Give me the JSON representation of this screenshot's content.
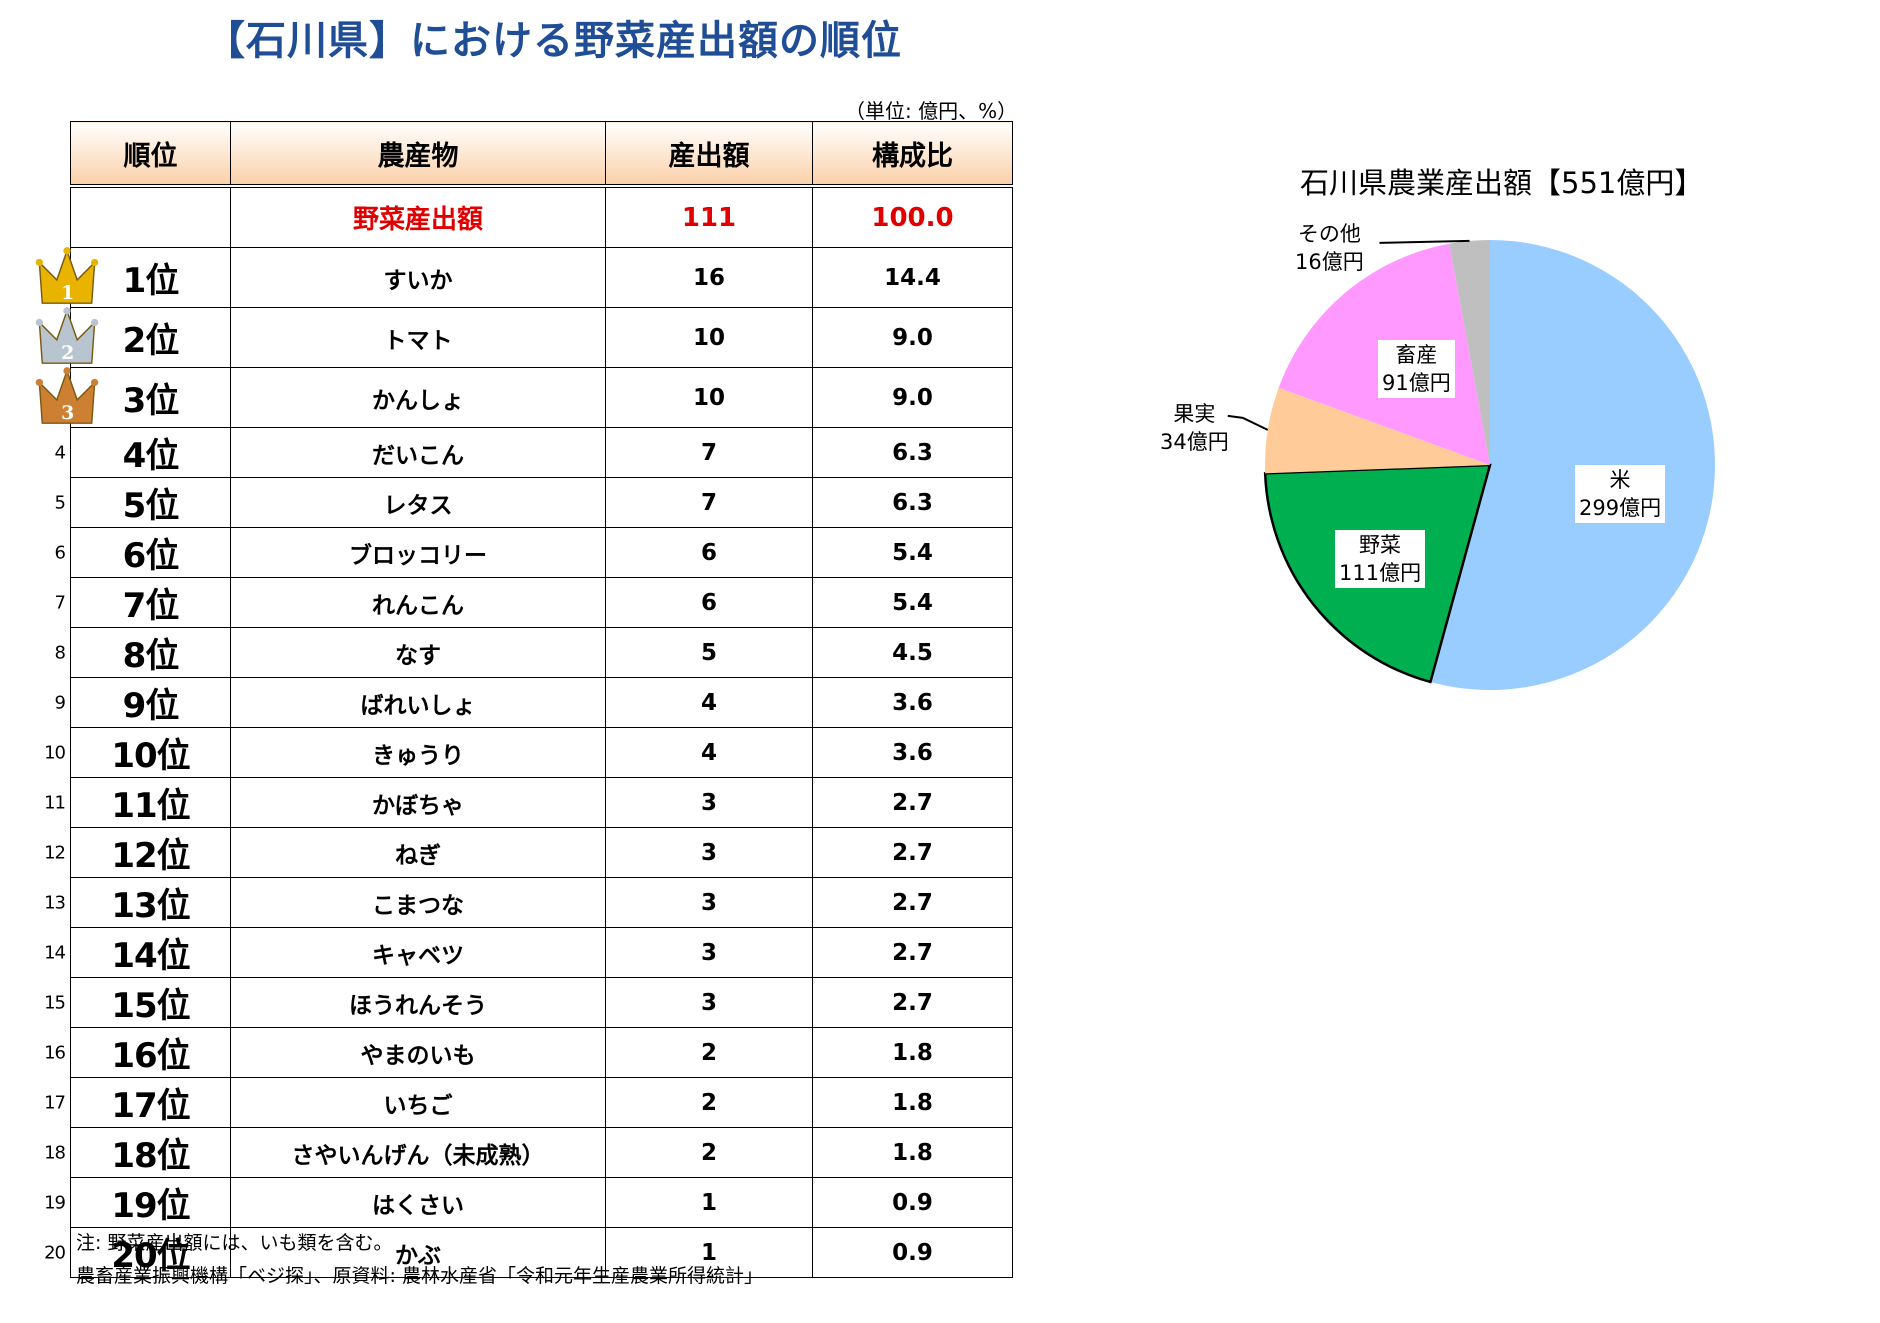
{
  "title": "【石川県】における野菜産出額の順位",
  "unit_note": "（単位: 億円、%）",
  "table": {
    "headers": [
      "順位",
      "農産物",
      "産出額",
      "構成比"
    ],
    "total": {
      "label": "野菜産出額",
      "amount": "111",
      "ratio": "100.0"
    },
    "rows": [
      {
        "num": "",
        "rank": "1位",
        "crop": "すいか",
        "amount": "16",
        "ratio": "14.4",
        "medal": "gold",
        "medal_text": "1"
      },
      {
        "num": "",
        "rank": "2位",
        "crop": "トマト",
        "amount": "10",
        "ratio": "9.0",
        "medal": "silver",
        "medal_text": "2"
      },
      {
        "num": "",
        "rank": "3位",
        "crop": "かんしょ",
        "amount": "10",
        "ratio": "9.0",
        "medal": "bronze",
        "medal_text": "3"
      },
      {
        "num": "4",
        "rank": "4位",
        "crop": "だいこん",
        "amount": "7",
        "ratio": "6.3"
      },
      {
        "num": "5",
        "rank": "5位",
        "crop": "レタス",
        "amount": "7",
        "ratio": "6.3"
      },
      {
        "num": "6",
        "rank": "6位",
        "crop": "ブロッコリー",
        "amount": "6",
        "ratio": "5.4"
      },
      {
        "num": "7",
        "rank": "7位",
        "crop": "れんこん",
        "amount": "6",
        "ratio": "5.4"
      },
      {
        "num": "8",
        "rank": "8位",
        "crop": "なす",
        "amount": "5",
        "ratio": "4.5"
      },
      {
        "num": "9",
        "rank": "9位",
        "crop": "ばれいしょ",
        "amount": "4",
        "ratio": "3.6"
      },
      {
        "num": "10",
        "rank": "10位",
        "crop": "きゅうり",
        "amount": "4",
        "ratio": "3.6"
      },
      {
        "num": "11",
        "rank": "11位",
        "crop": "かぼちゃ",
        "amount": "3",
        "ratio": "2.7"
      },
      {
        "num": "12",
        "rank": "12位",
        "crop": "ねぎ",
        "amount": "3",
        "ratio": "2.7"
      },
      {
        "num": "13",
        "rank": "13位",
        "crop": "こまつな",
        "amount": "3",
        "ratio": "2.7"
      },
      {
        "num": "14",
        "rank": "14位",
        "crop": "キャベツ",
        "amount": "3",
        "ratio": "2.7"
      },
      {
        "num": "15",
        "rank": "15位",
        "crop": "ほうれんそう",
        "amount": "3",
        "ratio": "2.7"
      },
      {
        "num": "16",
        "rank": "16位",
        "crop": "やまのいも",
        "amount": "2",
        "ratio": "1.8"
      },
      {
        "num": "17",
        "rank": "17位",
        "crop": "いちご",
        "amount": "2",
        "ratio": "1.8"
      },
      {
        "num": "18",
        "rank": "18位",
        "crop": "さやいんげん（未成熟）",
        "amount": "2",
        "ratio": "1.8"
      },
      {
        "num": "19",
        "rank": "19位",
        "crop": "はくさい",
        "amount": "1",
        "ratio": "0.9"
      },
      {
        "num": "20",
        "rank": "20位",
        "crop": "かぶ",
        "amount": "1",
        "ratio": "0.9"
      }
    ]
  },
  "footnotes": {
    "note": "注: 野菜産出額には、いも類を含む。",
    "source": "農畜産業振興機構「ベジ探」、原資料: 農林水産省「令和元年生産農業所得統計」"
  },
  "chart_data": {
    "type": "pie",
    "title": "石川県農業産出額【551億円】",
    "total": 551,
    "unit": "億円",
    "slices": [
      {
        "name": "米",
        "value": 299,
        "label": "299億円",
        "color": "#99ccff"
      },
      {
        "name": "野菜",
        "value": 111,
        "label": "111億円",
        "color": "#00b050"
      },
      {
        "name": "果実",
        "value": 34,
        "label": "34億円",
        "color": "#ffcc99"
      },
      {
        "name": "畜産",
        "value": 91,
        "label": "91億円",
        "color": "#ff99ff"
      },
      {
        "name": "その他",
        "value": 16,
        "label": "16億円",
        "color": "#bfbfbf"
      }
    ]
  },
  "colors": {
    "title": "#1f4e96",
    "total_row_text": "#e00000",
    "header_gradient_bottom": "#fbd0a8",
    "gold": "#e8b400",
    "silver": "#b8c4d0",
    "bronze": "#cd8032"
  }
}
